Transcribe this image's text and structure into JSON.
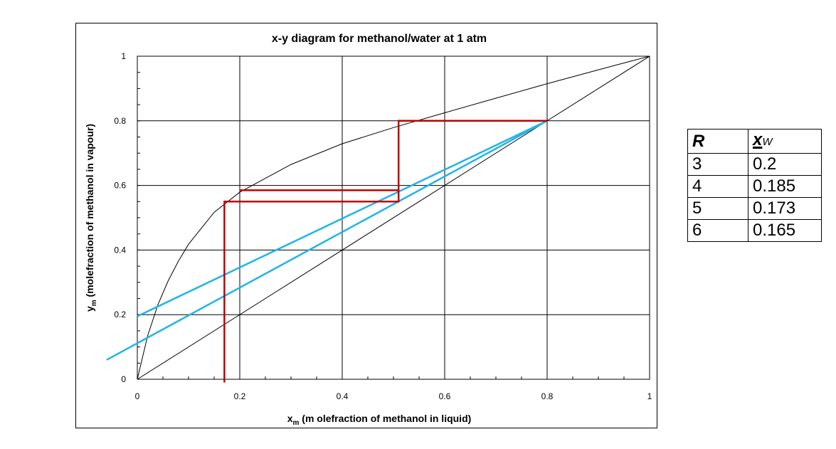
{
  "chart_data": {
    "type": "line",
    "title": "x-y diagram for methanol/water at 1 atm",
    "xlabel": "x",
    "xlabel_sub": "m",
    "xlabel_rest": " (m olefraction of methanol in liquid)",
    "ylabel": "y",
    "ylabel_sub": "m",
    "ylabel_rest": " (molefraction of methanol in vapour)",
    "xlim": [
      0,
      1
    ],
    "ylim": [
      0,
      1
    ],
    "x_ticks": [
      "0",
      "0.2",
      "0.4",
      "0.6",
      "0.8",
      "1"
    ],
    "y_ticks": [
      "0",
      "0.2",
      "0.4",
      "0.6",
      "0.8",
      "1"
    ],
    "grid": true,
    "series": [
      {
        "color": "#000000",
        "points": [
          [
            0,
            0
          ],
          [
            0.02,
            0.134
          ],
          [
            0.04,
            0.23
          ],
          [
            0.06,
            0.304
          ],
          [
            0.08,
            0.365
          ],
          [
            0.1,
            0.418
          ],
          [
            0.15,
            0.517
          ],
          [
            0.2,
            0.579
          ],
          [
            0.3,
            0.665
          ],
          [
            0.4,
            0.729
          ],
          [
            0.5,
            0.779
          ],
          [
            0.6,
            0.825
          ],
          [
            0.7,
            0.87
          ],
          [
            0.8,
            0.915
          ],
          [
            0.9,
            0.958
          ],
          [
            0.95,
            0.979
          ],
          [
            1,
            1
          ]
        ]
      },
      {
        "color": "#000000",
        "points": [
          [
            0,
            0
          ],
          [
            1,
            1
          ]
        ]
      },
      {
        "color": "#1fb4e8",
        "points": [
          [
            0,
            0.195
          ],
          [
            0.8,
            0.8
          ]
        ]
      },
      {
        "color": "#1fb4e8",
        "points": [
          [
            -0.06,
            0.06
          ],
          [
            0.8,
            0.8
          ]
        ]
      },
      {
        "color": "#c00000",
        "points": [
          [
            0.8,
            0.8
          ],
          [
            0.51,
            0.8
          ],
          [
            0.51,
            0.55
          ],
          [
            0.17,
            0.55
          ],
          [
            0.17,
            -0.01
          ]
        ]
      },
      {
        "color": "#c00000",
        "points": [
          [
            0.51,
            0.585
          ],
          [
            0.2,
            0.585
          ]
        ]
      }
    ]
  },
  "table": {
    "header_r": "R",
    "header_x": "x",
    "header_x_sub": "W",
    "rows": [
      {
        "r": "3",
        "x": "0.2"
      },
      {
        "r": "4",
        "x": "0.185"
      },
      {
        "r": "5",
        "x": "0.173"
      },
      {
        "r": "6",
        "x": "0.165"
      }
    ]
  }
}
